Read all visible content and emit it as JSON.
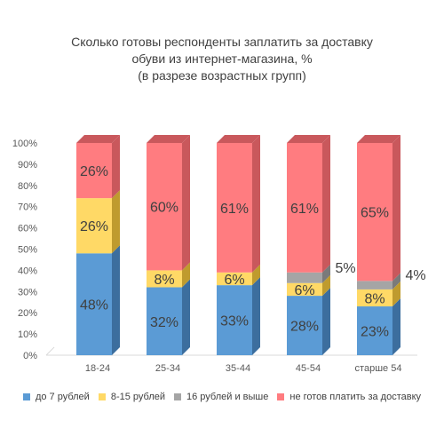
{
  "title_lines": [
    "Сколько готовы респонденты заплатить за доставку",
    "обуви из интернет-магазина, %",
    "(в разрезе возрастных групп)"
  ],
  "chart_data": {
    "type": "bar",
    "stacked": true,
    "percent": true,
    "categories": [
      "18-24",
      "25-34",
      "35-44",
      "45-54",
      "старше 54"
    ],
    "ylim": [
      0,
      100
    ],
    "yticks": [
      "0%",
      "10%",
      "20%",
      "30%",
      "40%",
      "50%",
      "60%",
      "70%",
      "80%",
      "90%",
      "100%"
    ],
    "series": [
      {
        "name": "до 7 рублей",
        "color": "#5B9BD5",
        "dark": "#3C6E9E",
        "top": "#7EB4E3",
        "values": [
          48,
          32,
          33,
          28,
          23
        ],
        "labels": [
          "48%",
          "32%",
          "33%",
          "28%",
          "23%"
        ]
      },
      {
        "name": "8-15 рублей",
        "color": "#FFD966",
        "dark": "#BF9B2E",
        "top": "#FFE38C",
        "values": [
          26,
          8,
          6,
          6,
          8
        ],
        "labels": [
          "26%",
          "8%",
          "6%",
          "6%",
          "8%"
        ]
      },
      {
        "name": "16 рублей и выше",
        "color": "#A5A5A5",
        "dark": "#7A7A7A",
        "top": "#BDBDBD",
        "values": [
          0,
          0,
          0,
          5,
          4
        ],
        "labels": [
          "",
          "",
          "",
          "5%",
          "4%"
        ]
      },
      {
        "name": "не готов платить за доставку",
        "color": "#FF7C80",
        "dark": "#C9585C",
        "top": "#C9585C",
        "values": [
          26,
          60,
          61,
          61,
          65
        ],
        "labels": [
          "26%",
          "60%",
          "61%",
          "61%",
          "65%"
        ]
      }
    ],
    "legend": "bottom",
    "grid": false
  }
}
